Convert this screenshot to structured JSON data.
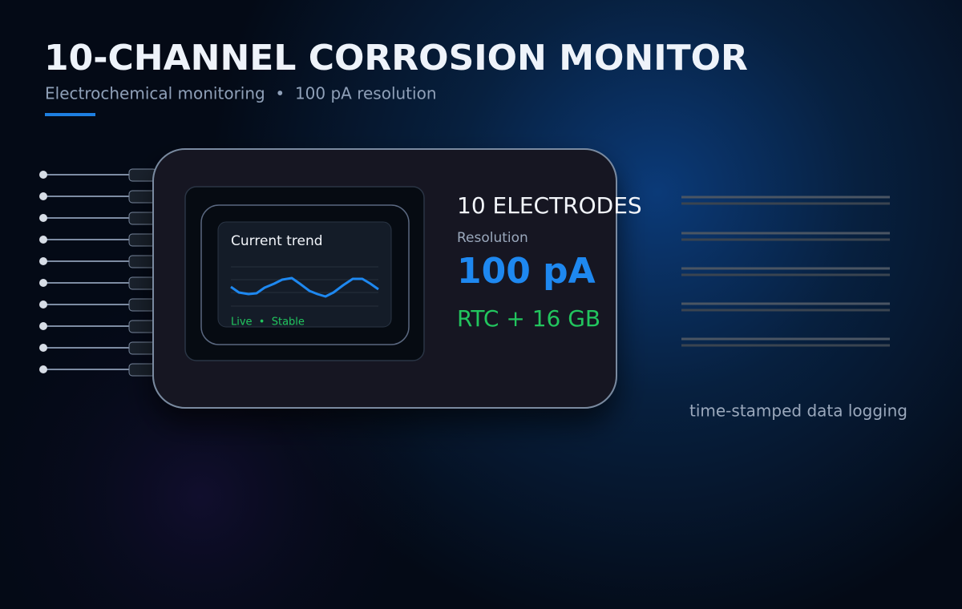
{
  "header": {
    "title": "10-CHANNEL CORROSION MONITOR",
    "subtitle": "Electrochemical monitoring  •  100 pA resolution"
  },
  "screen": {
    "title": "Current trend",
    "status": "Live  •  Stable"
  },
  "specs": {
    "channels": "10 ELECTRODES",
    "resolution_label": "Resolution",
    "resolution_value": "100 pA",
    "storage": "RTC + 16 GB"
  },
  "caption": "time-stamped data logging"
}
